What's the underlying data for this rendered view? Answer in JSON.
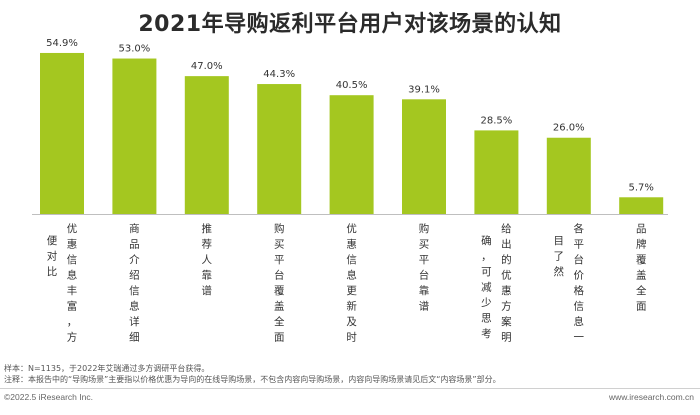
{
  "title": "2021年导购返利平台用户对该场景的认知",
  "chart_data": {
    "type": "bar",
    "title": "2021年导购返利平台用户对该场景的认知",
    "value_suffix": "%",
    "categories": [
      "优惠信息丰富，方便对比",
      "商品介绍信息详细",
      "推荐人靠谱",
      "购买平台覆盖全面",
      "优惠信息更新及时",
      "购买平台靠谱",
      "给出的优惠方案明确，可减少思考",
      "各平台价格信息一目了然",
      "品牌覆盖全面"
    ],
    "label_columns": [
      [
        [
          "优",
          "惠",
          "信",
          "息",
          "丰",
          "富",
          "，",
          "方"
        ],
        [
          "便",
          "对",
          "比"
        ]
      ],
      [
        [
          "商",
          "品",
          "介",
          "绍",
          "信",
          "息",
          "详",
          "细"
        ]
      ],
      [
        [
          "推",
          "荐",
          "人",
          "靠",
          "谱"
        ]
      ],
      [
        [
          "购",
          "买",
          "平",
          "台",
          "覆",
          "盖",
          "全",
          "面"
        ]
      ],
      [
        [
          "优",
          "惠",
          "信",
          "息",
          "更",
          "新",
          "及",
          "时"
        ]
      ],
      [
        [
          "购",
          "买",
          "平",
          "台",
          "靠",
          "谱"
        ]
      ],
      [
        [
          "给",
          "出",
          "的",
          "优",
          "惠",
          "方",
          "案",
          "明"
        ],
        [
          "确",
          "，",
          "可",
          "减",
          "少",
          "思",
          "考"
        ]
      ],
      [
        [
          "各",
          "平",
          "台",
          "价",
          "格",
          "信",
          "息",
          "一"
        ],
        [
          "目",
          "了",
          "然"
        ]
      ],
      [
        [
          "品",
          "牌",
          "覆",
          "盖",
          "全",
          "面"
        ]
      ]
    ],
    "values": [
      54.9,
      53.0,
      47.0,
      44.3,
      40.5,
      39.1,
      28.5,
      26.0,
      5.7
    ],
    "ylim": [
      0,
      60
    ],
    "bar_color": "#a4c720",
    "grid": false
  },
  "notes": {
    "sample": "样本：N=1135，于2022年艾瑞通过多方调研平台获得。",
    "footnote": "注释：本报告中的“导购场景”主要指以价格优惠为导向的在线导购场景，不包含内容向导购场景，内容向导购场景请见后文“内容场景”部分。"
  },
  "footer": {
    "left": "©2022.5 iResearch Inc.",
    "right": "www.iresearch.com.cn"
  }
}
